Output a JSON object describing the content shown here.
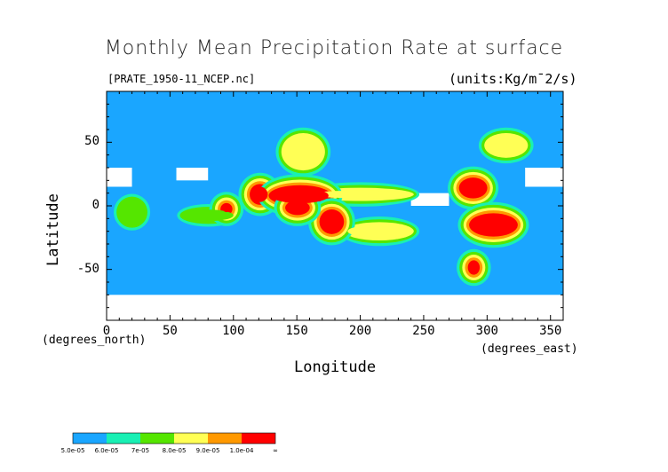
{
  "chart_data": {
    "type": "heatmap",
    "title": "Monthly Mean Precipitation Rate at surface",
    "subtitle": "[PRATE_1950-11_NCEP.nc]",
    "units": "(units:Kg/m¯2/s)",
    "xlabel": "Longitude",
    "ylabel": "Latitude",
    "x_unit": "(degrees_east)",
    "y_unit": "(degrees_north)",
    "xlim": [
      0,
      360
    ],
    "ylim": [
      -90,
      90
    ],
    "x_ticks": [
      0,
      50,
      100,
      150,
      200,
      250,
      300,
      350
    ],
    "y_ticks": [
      -50,
      0,
      50
    ],
    "background_level": "5.0e-05",
    "colorbar": {
      "levels": [
        "5.0e-05",
        "6.0e-05",
        "7e-05",
        "8.0e-05",
        "9.0e-05",
        "1.0e-04",
        "∞"
      ],
      "colors": [
        "#1aa6ff",
        "#19f0b4",
        "#55e600",
        "#ffff55",
        "#ff9900",
        "#ff0000"
      ]
    },
    "regions": [
      {
        "level": 6,
        "lon": [
          115,
          127
        ],
        "lat": [
          3,
          15
        ]
      },
      {
        "level": 6,
        "lon": [
          130,
          175
        ],
        "lat": [
          2,
          14
        ]
      },
      {
        "level": 6,
        "lon": [
          170,
          185
        ],
        "lat": [
          -20,
          -5
        ]
      },
      {
        "level": 6,
        "lon": [
          143,
          158
        ],
        "lat": [
          -5,
          2
        ]
      },
      {
        "level": 6,
        "lon": [
          280,
          298
        ],
        "lat": [
          8,
          20
        ]
      },
      {
        "level": 6,
        "lon": [
          288,
          322
        ],
        "lat": [
          -22,
          -8
        ]
      },
      {
        "level": 6,
        "lon": [
          287,
          292
        ],
        "lat": [
          -52,
          -45
        ]
      },
      {
        "level": 6,
        "lon": [
          92,
          97
        ],
        "lat": [
          -5,
          0
        ]
      },
      {
        "level": 4,
        "lon": [
          160,
          240
        ],
        "lat": [
          6,
          12
        ]
      },
      {
        "level": 4,
        "lon": [
          190,
          240
        ],
        "lat": [
          -25,
          -15
        ]
      },
      {
        "level": 4,
        "lon": [
          140,
          170
        ],
        "lat": [
          30,
          55
        ]
      },
      {
        "level": 4,
        "lon": [
          300,
          330
        ],
        "lat": [
          40,
          55
        ]
      },
      {
        "level": 3,
        "lon": [
          10,
          30
        ],
        "lat": [
          -15,
          5
        ]
      },
      {
        "level": 3,
        "lon": [
          60,
          100
        ],
        "lat": [
          -12,
          -3
        ]
      }
    ],
    "missing_regions": [
      {
        "lon": [
          0,
          360
        ],
        "lat": [
          -90,
          -70
        ]
      },
      {
        "lon": [
          0,
          20
        ],
        "lat": [
          15,
          30
        ]
      },
      {
        "lon": [
          55,
          80
        ],
        "lat": [
          20,
          30
        ]
      },
      {
        "lon": [
          240,
          270
        ],
        "lat": [
          0,
          10
        ]
      },
      {
        "lon": [
          330,
          360
        ],
        "lat": [
          15,
          30
        ]
      }
    ]
  }
}
